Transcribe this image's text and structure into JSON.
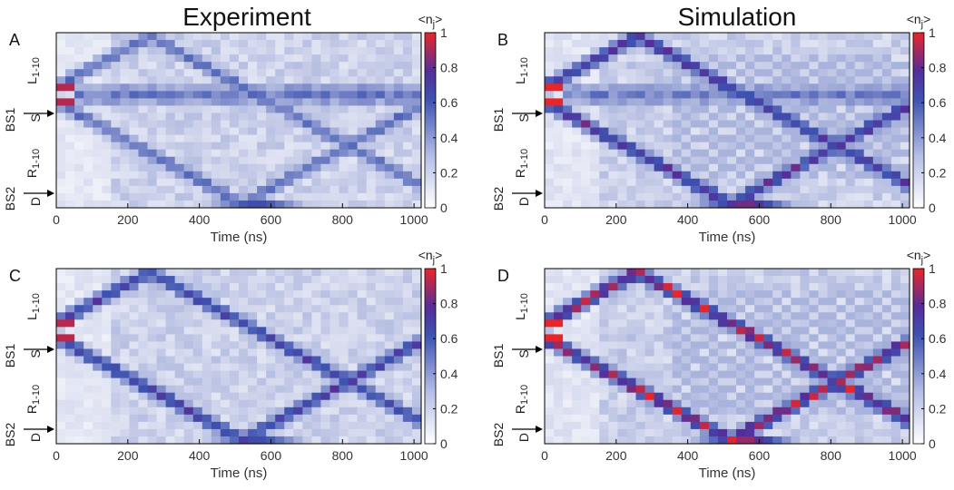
{
  "figure": {
    "column_titles": [
      "Experiment",
      "Simulation"
    ],
    "colors": {
      "low": "#ffffff",
      "mid": "#3d52b0",
      "high": "#e8262a",
      "frame": "#000000"
    }
  },
  "chart_data": [
    {
      "panel": "A",
      "type": "heatmap",
      "source": "Experiment",
      "xlabel": "Time (ns)",
      "xlim": [
        0,
        1020
      ],
      "xticks": [
        0,
        200,
        400,
        600,
        800,
        1000
      ],
      "y_rows": 24,
      "y_labels": [
        "L",
        "S",
        "BS1",
        "R",
        "BS2",
        "D"
      ],
      "y_subscript": "1-10",
      "colorbar": {
        "title": "<n",
        "subscript": "j",
        "title_end": ">",
        "range": [
          0,
          1
        ],
        "ticks": [
          0,
          0.2,
          0.4,
          0.6,
          0.8,
          1
        ]
      },
      "features": {
        "spread_end_time": 520,
        "spread_amp": 0.55,
        "core_amp": 0.5,
        "detector_amp": 0.7,
        "initial_amp": 1.0,
        "contrast": 0.55
      }
    },
    {
      "panel": "B",
      "type": "heatmap",
      "source": "Simulation",
      "xlabel": "Time (ns)",
      "xlim": [
        0,
        1020
      ],
      "xticks": [
        0,
        200,
        400,
        600,
        800,
        1000
      ],
      "y_rows": 24,
      "y_labels": [
        "L",
        "S",
        "BS1",
        "R",
        "BS2",
        "D"
      ],
      "y_subscript": "1-10",
      "colorbar": {
        "title": "<n",
        "subscript": "j",
        "title_end": ">",
        "range": [
          0,
          1
        ],
        "ticks": [
          0,
          0.2,
          0.4,
          0.6,
          0.8,
          1
        ]
      },
      "features": {
        "spread_end_time": 520,
        "spread_amp": 0.75,
        "core_amp": 0.45,
        "detector_amp": 0.85,
        "initial_amp": 1.0,
        "contrast": 1.0
      }
    },
    {
      "panel": "C",
      "type": "heatmap",
      "source": "Experiment",
      "xlabel": "Time (ns)",
      "xlim": [
        0,
        1020
      ],
      "xticks": [
        0,
        200,
        400,
        600,
        800,
        1000
      ],
      "y_rows": 24,
      "y_labels": [
        "L",
        "S",
        "BS1",
        "R",
        "BS2",
        "D"
      ],
      "y_subscript": "1-10",
      "colorbar": {
        "title": "<n",
        "subscript": "j",
        "title_end": ">",
        "range": [
          0,
          1
        ],
        "ticks": [
          0,
          0.2,
          0.4,
          0.6,
          0.8,
          1
        ]
      },
      "features": {
        "spread_end_time": 520,
        "spread_amp": 0.75,
        "core_amp": 0.0,
        "detector_amp": 0.7,
        "initial_amp": 1.0,
        "contrast": 0.6
      }
    },
    {
      "panel": "D",
      "type": "heatmap",
      "source": "Simulation",
      "xlabel": "Time (ns)",
      "xlim": [
        0,
        1020
      ],
      "xticks": [
        0,
        200,
        400,
        600,
        800,
        1000
      ],
      "y_rows": 24,
      "y_labels": [
        "L",
        "S",
        "BS1",
        "R",
        "BS2",
        "D"
      ],
      "y_subscript": "1-10",
      "colorbar": {
        "title": "<n",
        "subscript": "j",
        "title_end": ">",
        "range": [
          0,
          1
        ],
        "ticks": [
          0,
          0.2,
          0.4,
          0.6,
          0.8,
          1
        ]
      },
      "features": {
        "spread_end_time": 520,
        "spread_amp": 0.9,
        "core_amp": 0.0,
        "detector_amp": 0.9,
        "initial_amp": 1.0,
        "contrast": 1.0
      }
    }
  ]
}
